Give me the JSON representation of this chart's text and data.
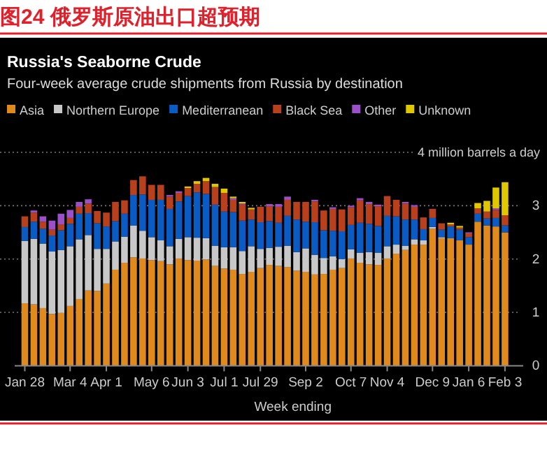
{
  "chart_data": {
    "type": "bar",
    "stacked": true,
    "title": "图24 俄罗斯原油出口超预期",
    "subtitle": "Russia's Seaborne Crude",
    "annotations": [
      "Four-week average crude shipments from Russia by destination"
    ],
    "xlabel": "Week ending",
    "categories": [
      "Jan 28",
      null,
      null,
      null,
      null,
      "Mar 4",
      null,
      null,
      null,
      "Apr 1",
      null,
      null,
      null,
      null,
      "May 6",
      null,
      null,
      null,
      "Jun 3",
      null,
      null,
      null,
      "Jul 1",
      null,
      null,
      null,
      "Jul 29",
      null,
      null,
      null,
      null,
      "Sep 2",
      null,
      null,
      null,
      null,
      "Oct 7",
      null,
      null,
      null,
      "Nov 4",
      null,
      null,
      null,
      null,
      "Dec 9",
      null,
      null,
      null,
      "Jan 6",
      null,
      null,
      null,
      "Feb 3"
    ],
    "series": [
      {
        "name": "Asia",
        "color": "#e08a1e",
        "values": [
          1.17,
          1.15,
          1.08,
          0.97,
          0.99,
          1.12,
          1.25,
          1.41,
          1.4,
          1.54,
          1.8,
          1.93,
          2.03,
          2.01,
          1.98,
          1.96,
          1.9,
          2.01,
          1.98,
          1.97,
          1.99,
          1.87,
          1.82,
          1.8,
          1.72,
          1.76,
          1.83,
          1.89,
          1.87,
          1.85,
          1.78,
          1.76,
          1.71,
          1.72,
          1.8,
          1.83,
          2.01,
          1.93,
          1.9,
          1.89,
          2.01,
          2.1,
          2.17,
          2.27,
          2.27,
          2.57,
          2.39,
          2.39,
          2.35,
          2.27,
          2.7,
          2.63,
          2.61,
          2.5
        ]
      },
      {
        "name": "Northern Europe",
        "color": "#c8c8c8",
        "values": [
          1.17,
          1.23,
          1.21,
          1.17,
          1.18,
          1.12,
          1.12,
          1.04,
          0.79,
          0.65,
          0.53,
          0.49,
          0.6,
          0.52,
          0.43,
          0.39,
          0.34,
          0.37,
          0.43,
          0.43,
          0.4,
          0.38,
          0.4,
          0.42,
          0.43,
          0.48,
          0.36,
          0.32,
          0.36,
          0.4,
          0.35,
          0.44,
          0.37,
          0.3,
          0.25,
          0.17,
          0.17,
          0.19,
          0.23,
          0.23,
          0.23,
          0.17,
          0.08,
          0.1,
          0.08,
          0.03,
          0.02,
          0,
          0,
          0,
          0,
          0,
          0,
          0
        ]
      },
      {
        "name": "Mediterranean",
        "color": "#0a5bc4",
        "values": [
          0.26,
          0.32,
          0.28,
          0.3,
          0.37,
          0.42,
          0.48,
          0.41,
          0.48,
          0.42,
          0.38,
          0.43,
          0.57,
          0.68,
          0.7,
          0.76,
          0.7,
          0.7,
          0.77,
          0.85,
          0.83,
          0.77,
          0.67,
          0.66,
          0.57,
          0.5,
          0.5,
          0.5,
          0.45,
          0.56,
          0.61,
          0.5,
          0.61,
          0.52,
          0.48,
          0.52,
          0.46,
          0.56,
          0.53,
          0.5,
          0.57,
          0.53,
          0.49,
          0.37,
          0.21,
          0.17,
          0.14,
          0.22,
          0.2,
          0.14,
          0.15,
          0.13,
          0.16,
          0.13
        ]
      },
      {
        "name": "Black Sea",
        "color": "#b8401c",
        "values": [
          0.2,
          0.17,
          0.13,
          0.11,
          0.11,
          0.11,
          0.13,
          0.18,
          0.23,
          0.26,
          0.36,
          0.25,
          0.28,
          0.34,
          0.28,
          0.28,
          0.23,
          0.16,
          0.15,
          0.16,
          0.24,
          0.33,
          0.35,
          0.23,
          0.3,
          0.19,
          0.29,
          0.28,
          0.3,
          0.3,
          0.33,
          0.37,
          0.39,
          0.37,
          0.41,
          0.41,
          0.33,
          0.42,
          0.37,
          0.37,
          0.37,
          0.31,
          0.3,
          0.24,
          0.22,
          0.17,
          0.12,
          0.04,
          0.04,
          0.07,
          0.1,
          0.13,
          0.15,
          0.19
        ]
      },
      {
        "name": "Other",
        "color": "#9b4fc8",
        "values": [
          0,
          0.04,
          0.1,
          0.17,
          0.2,
          0.15,
          0.09,
          0.08,
          0,
          0,
          0,
          0,
          0,
          0,
          0,
          0,
          0.03,
          0.03,
          0,
          0,
          0,
          0,
          0,
          0.03,
          0.02,
          0,
          0,
          0.04,
          0.05,
          0.06,
          0,
          0,
          0.03,
          0,
          0.03,
          0,
          0.03,
          0.04,
          0.04,
          0.03,
          0,
          0,
          0.03,
          0.03,
          0,
          0,
          0,
          0,
          0,
          0.02,
          0,
          0,
          0.03,
          0
        ]
      },
      {
        "name": "Unknown",
        "color": "#e0c800",
        "values": [
          0,
          0,
          0,
          0,
          0,
          0,
          0,
          0,
          0,
          0,
          0,
          0,
          0,
          0,
          0,
          0,
          0,
          0,
          0.03,
          0.05,
          0.06,
          0.06,
          0.08,
          0.03,
          0.03,
          0.03,
          0,
          0,
          0,
          0,
          0,
          0,
          0,
          0,
          0,
          0,
          0,
          0,
          0,
          0,
          0,
          0,
          0,
          0,
          0,
          0,
          0,
          0.03,
          0.03,
          0,
          0.1,
          0.2,
          0.39,
          0.62
        ]
      }
    ],
    "ylim": [
      0,
      4
    ],
    "yticks": [
      0,
      1,
      2,
      3,
      {
        "value": 4,
        "label": "4 million barrels a day"
      }
    ],
    "grid": "y",
    "legend": "top left"
  }
}
